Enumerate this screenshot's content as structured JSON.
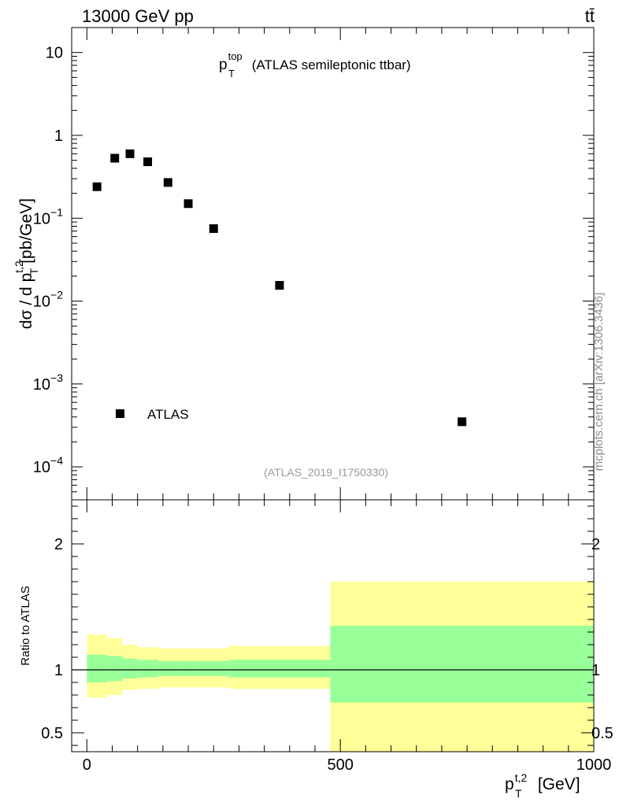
{
  "header": {
    "energy_label": "13000 GeV pp",
    "process_label": "tt̄"
  },
  "side_label": "mcplots.cern.ch [arXiv:1306.3436]",
  "colors": {
    "inner_band": "#99ff99",
    "outer_band": "#ffff99",
    "marker": "#000000"
  },
  "chart_data": [
    {
      "panel": "main",
      "type": "scatter",
      "y_scale": "log",
      "title": {
        "var": "p",
        "sub": "T",
        "sup": "top",
        "rest": " (ATLAS semileptonic ttbar)"
      },
      "ylabel": {
        "pre": "dσ / d p",
        "sup": "t,2",
        "sub": "T",
        "post": " [pb/GeV]"
      },
      "xlim": [
        -30,
        1000
      ],
      "ylim": [
        4e-05,
        20
      ],
      "y_ticks": [
        {
          "value": 10,
          "base": "10",
          "exp": ""
        },
        {
          "value": 1,
          "base": "1",
          "exp": ""
        },
        {
          "value": 0.1,
          "base": "10",
          "exp": "−1"
        },
        {
          "value": 0.01,
          "base": "10",
          "exp": "−2"
        },
        {
          "value": 0.001,
          "base": "10",
          "exp": "−3"
        },
        {
          "value": 0.0001,
          "base": "10",
          "exp": "−4"
        }
      ],
      "legend": {
        "entry": "ATLAS",
        "position": "bottom-left"
      },
      "analysis_label": "(ATLAS_2019_I1750330)",
      "series": [
        {
          "name": "ATLAS",
          "points": [
            {
              "x": 20,
              "y": 0.24
            },
            {
              "x": 55,
              "y": 0.53
            },
            {
              "x": 85,
              "y": 0.6
            },
            {
              "x": 120,
              "y": 0.48
            },
            {
              "x": 160,
              "y": 0.27
            },
            {
              "x": 200,
              "y": 0.15
            },
            {
              "x": 250,
              "y": 0.075
            },
            {
              "x": 380,
              "y": 0.0155
            },
            {
              "x": 740,
              "y": 0.00035
            }
          ]
        }
      ]
    },
    {
      "panel": "ratio",
      "type": "area",
      "ylabel": "Ratio to ATLAS",
      "xlabel": {
        "var": "p",
        "sup": "t,2",
        "sub": "T",
        "post": " [GeV]"
      },
      "xlim": [
        -30,
        1000
      ],
      "ylim": [
        0.35,
        2.35
      ],
      "x_ticks": [
        "0",
        "500",
        "1000"
      ],
      "x_tick_values": [
        0,
        500,
        1000
      ],
      "y_ticks": [
        "0.5",
        "1",
        "2"
      ],
      "y_tick_values": [
        0.5,
        1,
        2
      ],
      "reference_line": 1,
      "bins": [
        {
          "lo": 0,
          "hi": 40,
          "inner": [
            0.9,
            1.12
          ],
          "outer": [
            0.78,
            1.28
          ]
        },
        {
          "lo": 40,
          "hi": 70,
          "inner": [
            0.91,
            1.11
          ],
          "outer": [
            0.8,
            1.25
          ]
        },
        {
          "lo": 70,
          "hi": 100,
          "inner": [
            0.93,
            1.09
          ],
          "outer": [
            0.84,
            1.2
          ]
        },
        {
          "lo": 100,
          "hi": 140,
          "inner": [
            0.94,
            1.08
          ],
          "outer": [
            0.85,
            1.18
          ]
        },
        {
          "lo": 140,
          "hi": 180,
          "inner": [
            0.95,
            1.07
          ],
          "outer": [
            0.86,
            1.17
          ]
        },
        {
          "lo": 180,
          "hi": 220,
          "inner": [
            0.95,
            1.07
          ],
          "outer": [
            0.86,
            1.17
          ]
        },
        {
          "lo": 220,
          "hi": 280,
          "inner": [
            0.95,
            1.07
          ],
          "outer": [
            0.86,
            1.17
          ]
        },
        {
          "lo": 280,
          "hi": 480,
          "inner": [
            0.94,
            1.08
          ],
          "outer": [
            0.85,
            1.19
          ]
        },
        {
          "lo": 480,
          "hi": 1000,
          "inner": [
            0.74,
            1.35
          ],
          "outer": [
            0.35,
            1.7
          ]
        }
      ]
    }
  ]
}
